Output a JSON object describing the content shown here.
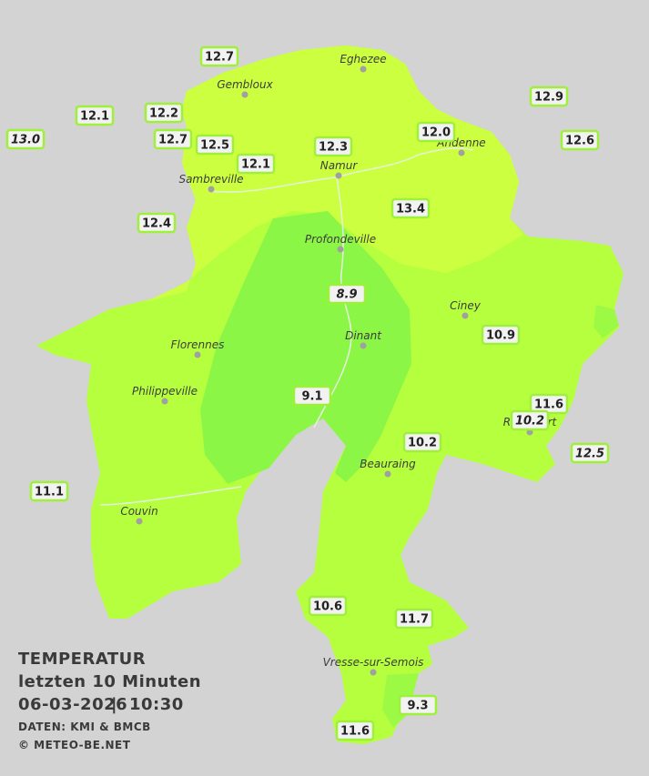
{
  "header": {
    "title": "TEMPERATUR",
    "subtitle": "letzten 10 Minuten",
    "date": "06-03-2026",
    "separator": "|",
    "time": "10:30",
    "source": "DATEN: KMI & BMCB",
    "copyright": "© METEO-BE.NET"
  },
  "cities": [
    "Eghezee",
    "Gembloux",
    "Andenne",
    "Namur",
    "Sambreville",
    "Profondeville",
    "Ciney",
    "Florennes",
    "Dinant",
    "Philippeville",
    "Rochefort",
    "Beauraing",
    "Couvin",
    "Vresse-sur-Semois"
  ],
  "stations": [
    "12.7",
    "12.1",
    "12.2",
    "13.0",
    "12.7",
    "12.5",
    "12.1",
    "12.3",
    "12.0",
    "12.9",
    "12.6",
    "13.4",
    "12.4",
    "8.9",
    "10.9",
    "9.1",
    "11.6",
    "10.2",
    "12.5",
    "10.2",
    "11.1",
    "10.6",
    "11.7",
    "9.3",
    "11.6"
  ]
}
